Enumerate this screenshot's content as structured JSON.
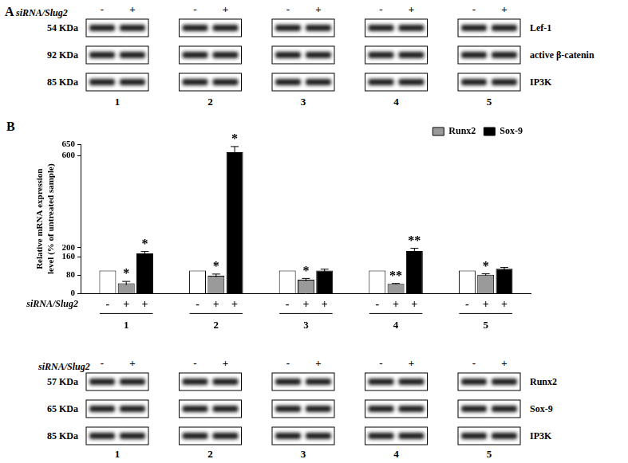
{
  "chart_data": {
    "type": "bar",
    "panel": "B",
    "y_label": "Relative mRNA expression level (% of untreated sample)",
    "x_label": "siRNA/Slug2",
    "categories": [
      "1",
      "2",
      "3",
      "4",
      "5"
    ],
    "series": [
      {
        "name": null,
        "treatment": "-",
        "color": "#ffffff",
        "values": [
          100,
          100,
          100,
          100,
          100
        ]
      },
      {
        "name": "Runx2",
        "treatment": "+",
        "color": "#9a9a9a",
        "values": [
          45,
          78,
          60,
          42,
          82
        ],
        "errors": [
          8,
          7,
          6,
          2,
          4
        ],
        "significance": [
          "*",
          "*",
          "*",
          "**",
          "*"
        ]
      },
      {
        "name": "Sox-9",
        "treatment": "+",
        "color": "#000000",
        "values": [
          175,
          615,
          100,
          185,
          108
        ],
        "errors": [
          8,
          25,
          6,
          12,
          6
        ],
        "significance": [
          "*",
          "*",
          null,
          "**",
          null
        ]
      }
    ],
    "ylim": [
      0,
      650
    ],
    "yticks": [
      0,
      80,
      160,
      200,
      600,
      650
    ],
    "grid": false,
    "legend": "top-right"
  },
  "blots": [
    {
      "panel": "A",
      "treatment_label": "siRNA/Slug2",
      "lanes": [
        "-",
        "+"
      ],
      "groups": [
        "1",
        "2",
        "3",
        "4",
        "5"
      ],
      "rows": [
        {
          "size": "54 KDa",
          "protein": "Lef-1"
        },
        {
          "size": "92 KDa",
          "protein": "active β-catenin"
        },
        {
          "size": "85 KDa",
          "protein": "IP3K"
        }
      ]
    },
    {
      "treatment_label": "siRNA/Slug2",
      "lanes": [
        "-",
        "+"
      ],
      "groups": [
        "1",
        "2",
        "3",
        "4",
        "5"
      ],
      "rows": [
        {
          "size": "57 KDa",
          "protein": "Runx2"
        },
        {
          "size": "65 KDa",
          "protein": "Sox-9"
        },
        {
          "size": "85 KDa",
          "protein": "IP3K"
        }
      ]
    }
  ]
}
